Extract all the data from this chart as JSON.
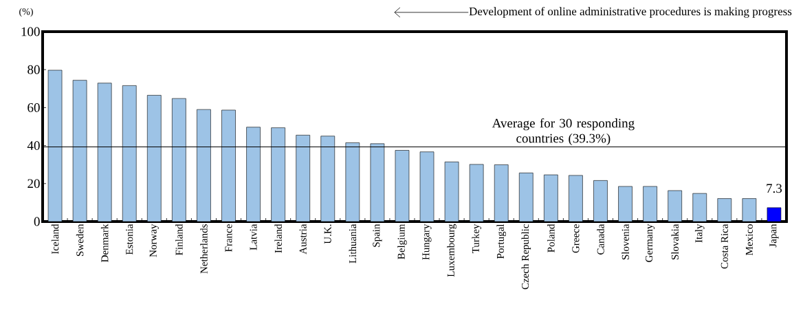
{
  "chart_data": {
    "type": "bar",
    "ylabel": "(%)",
    "categories": [
      "Iceland",
      "Sweden",
      "Denmark",
      "Estonia",
      "Norway",
      "Finland",
      "Netherlands",
      "France",
      "Latvia",
      "Ireland",
      "Austria",
      "U.K.",
      "Lithuania",
      "Spain",
      "Belgium",
      "Hungary",
      "Luxembourg",
      "Turkey",
      "Portugal",
      "Czech Republic",
      "Poland",
      "Greece",
      "Canada",
      "Slovenia",
      "Germany",
      "Slovakia",
      "Italy",
      "Costa Rica",
      "Mexico",
      "Japan"
    ],
    "values": [
      79.7,
      74.4,
      72.9,
      71.6,
      66.5,
      64.8,
      59.0,
      58.7,
      49.7,
      49.4,
      45.5,
      45.0,
      41.5,
      41.0,
      37.5,
      36.7,
      31.4,
      30.1,
      29.9,
      25.6,
      24.6,
      24.3,
      21.6,
      18.5,
      18.5,
      16.3,
      14.8,
      12.1,
      12.1,
      7.3
    ],
    "colors": [
      "#9dc3e6",
      "#9dc3e6",
      "#9dc3e6",
      "#9dc3e6",
      "#9dc3e6",
      "#9dc3e6",
      "#9dc3e6",
      "#9dc3e6",
      "#9dc3e6",
      "#9dc3e6",
      "#9dc3e6",
      "#9dc3e6",
      "#9dc3e6",
      "#9dc3e6",
      "#9dc3e6",
      "#9dc3e6",
      "#9dc3e6",
      "#9dc3e6",
      "#9dc3e6",
      "#9dc3e6",
      "#9dc3e6",
      "#9dc3e6",
      "#9dc3e6",
      "#9dc3e6",
      "#9dc3e6",
      "#9dc3e6",
      "#9dc3e6",
      "#9dc3e6",
      "#9dc3e6",
      "#0000ff"
    ],
    "value_labels": [
      null,
      null,
      null,
      null,
      null,
      null,
      null,
      null,
      null,
      null,
      null,
      null,
      null,
      null,
      null,
      null,
      null,
      null,
      null,
      null,
      null,
      null,
      null,
      null,
      null,
      null,
      null,
      null,
      null,
      "7.3"
    ],
    "ref_lines": [
      {
        "axis": "y",
        "value": 39.3,
        "label": "Average for 30 responding countries (39.3%)",
        "color": "#000000"
      }
    ],
    "annotations": [
      "Development of online administrative procedures is making progress"
    ],
    "ylim": [
      0,
      100
    ],
    "yticks": [
      0,
      20,
      40,
      60,
      80,
      100
    ]
  }
}
